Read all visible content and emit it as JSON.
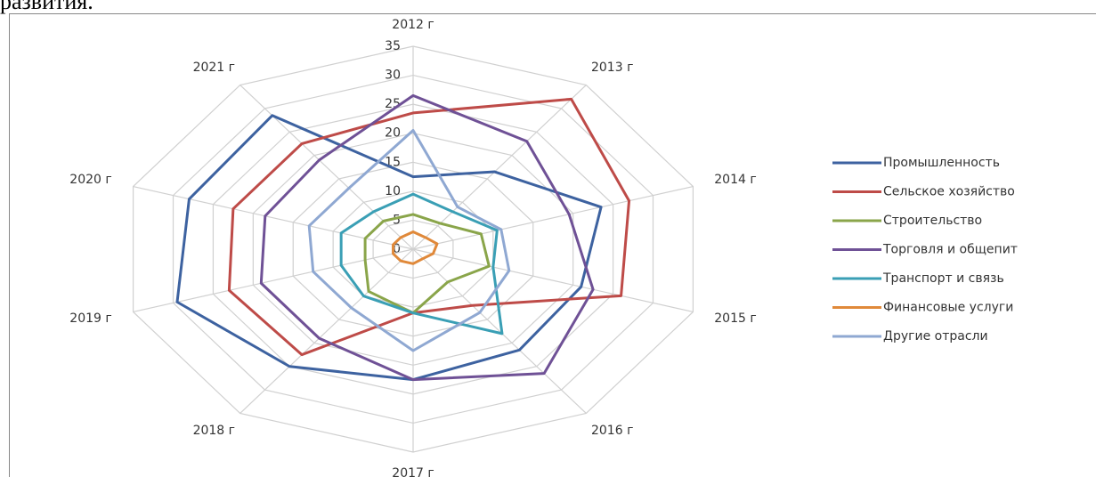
{
  "header_text": "развития.",
  "chart_data": {
    "type": "radar",
    "categories": [
      "2012 г",
      "2013 г",
      "2014 г",
      "2015 г",
      "2016 г",
      "2017 г",
      "2018 г",
      "2019 г",
      "2020 г",
      "2021 г"
    ],
    "ylim": [
      0,
      35
    ],
    "yticks": [
      0,
      5,
      10,
      15,
      20,
      25,
      30,
      35
    ],
    "grid": true,
    "legend": "right",
    "series": [
      {
        "name": "Промышленность",
        "color": "#3d62a0",
        "values": [
          12.5,
          16.5,
          23.5,
          21,
          21.5,
          22.5,
          25,
          29.5,
          28,
          28.5
        ]
      },
      {
        "name": "Сельское хозяйство",
        "color": "#be4b48",
        "values": [
          23.5,
          32,
          27,
          26,
          12,
          11,
          22.5,
          23,
          22.5,
          22.5
        ]
      },
      {
        "name": "Строительство",
        "color": "#8aa54a",
        "values": [
          6,
          5.5,
          8.5,
          9.5,
          7,
          11,
          9,
          6,
          6,
          6
        ]
      },
      {
        "name": "Торговля и общепит",
        "color": "#6f5196",
        "values": [
          26.5,
          23,
          19.5,
          22.5,
          26.5,
          22.5,
          19,
          19,
          18.5,
          19
        ]
      },
      {
        "name": "Транспорт и связь",
        "color": "#3a9fb5",
        "values": [
          9.5,
          8,
          10.5,
          10,
          18,
          11,
          10,
          9,
          9,
          8
        ]
      },
      {
        "name": "Финансовые услуги",
        "color": "#e0893a",
        "values": [
          3,
          2.5,
          3,
          2.5,
          2,
          2.5,
          2.5,
          2.5,
          2.5,
          2.5
        ]
      },
      {
        "name": "Другие отрасли",
        "color": "#8fa8d2",
        "values": [
          20.5,
          9,
          11,
          12,
          13.5,
          17.5,
          12.5,
          12.5,
          13,
          13
        ]
      }
    ]
  }
}
